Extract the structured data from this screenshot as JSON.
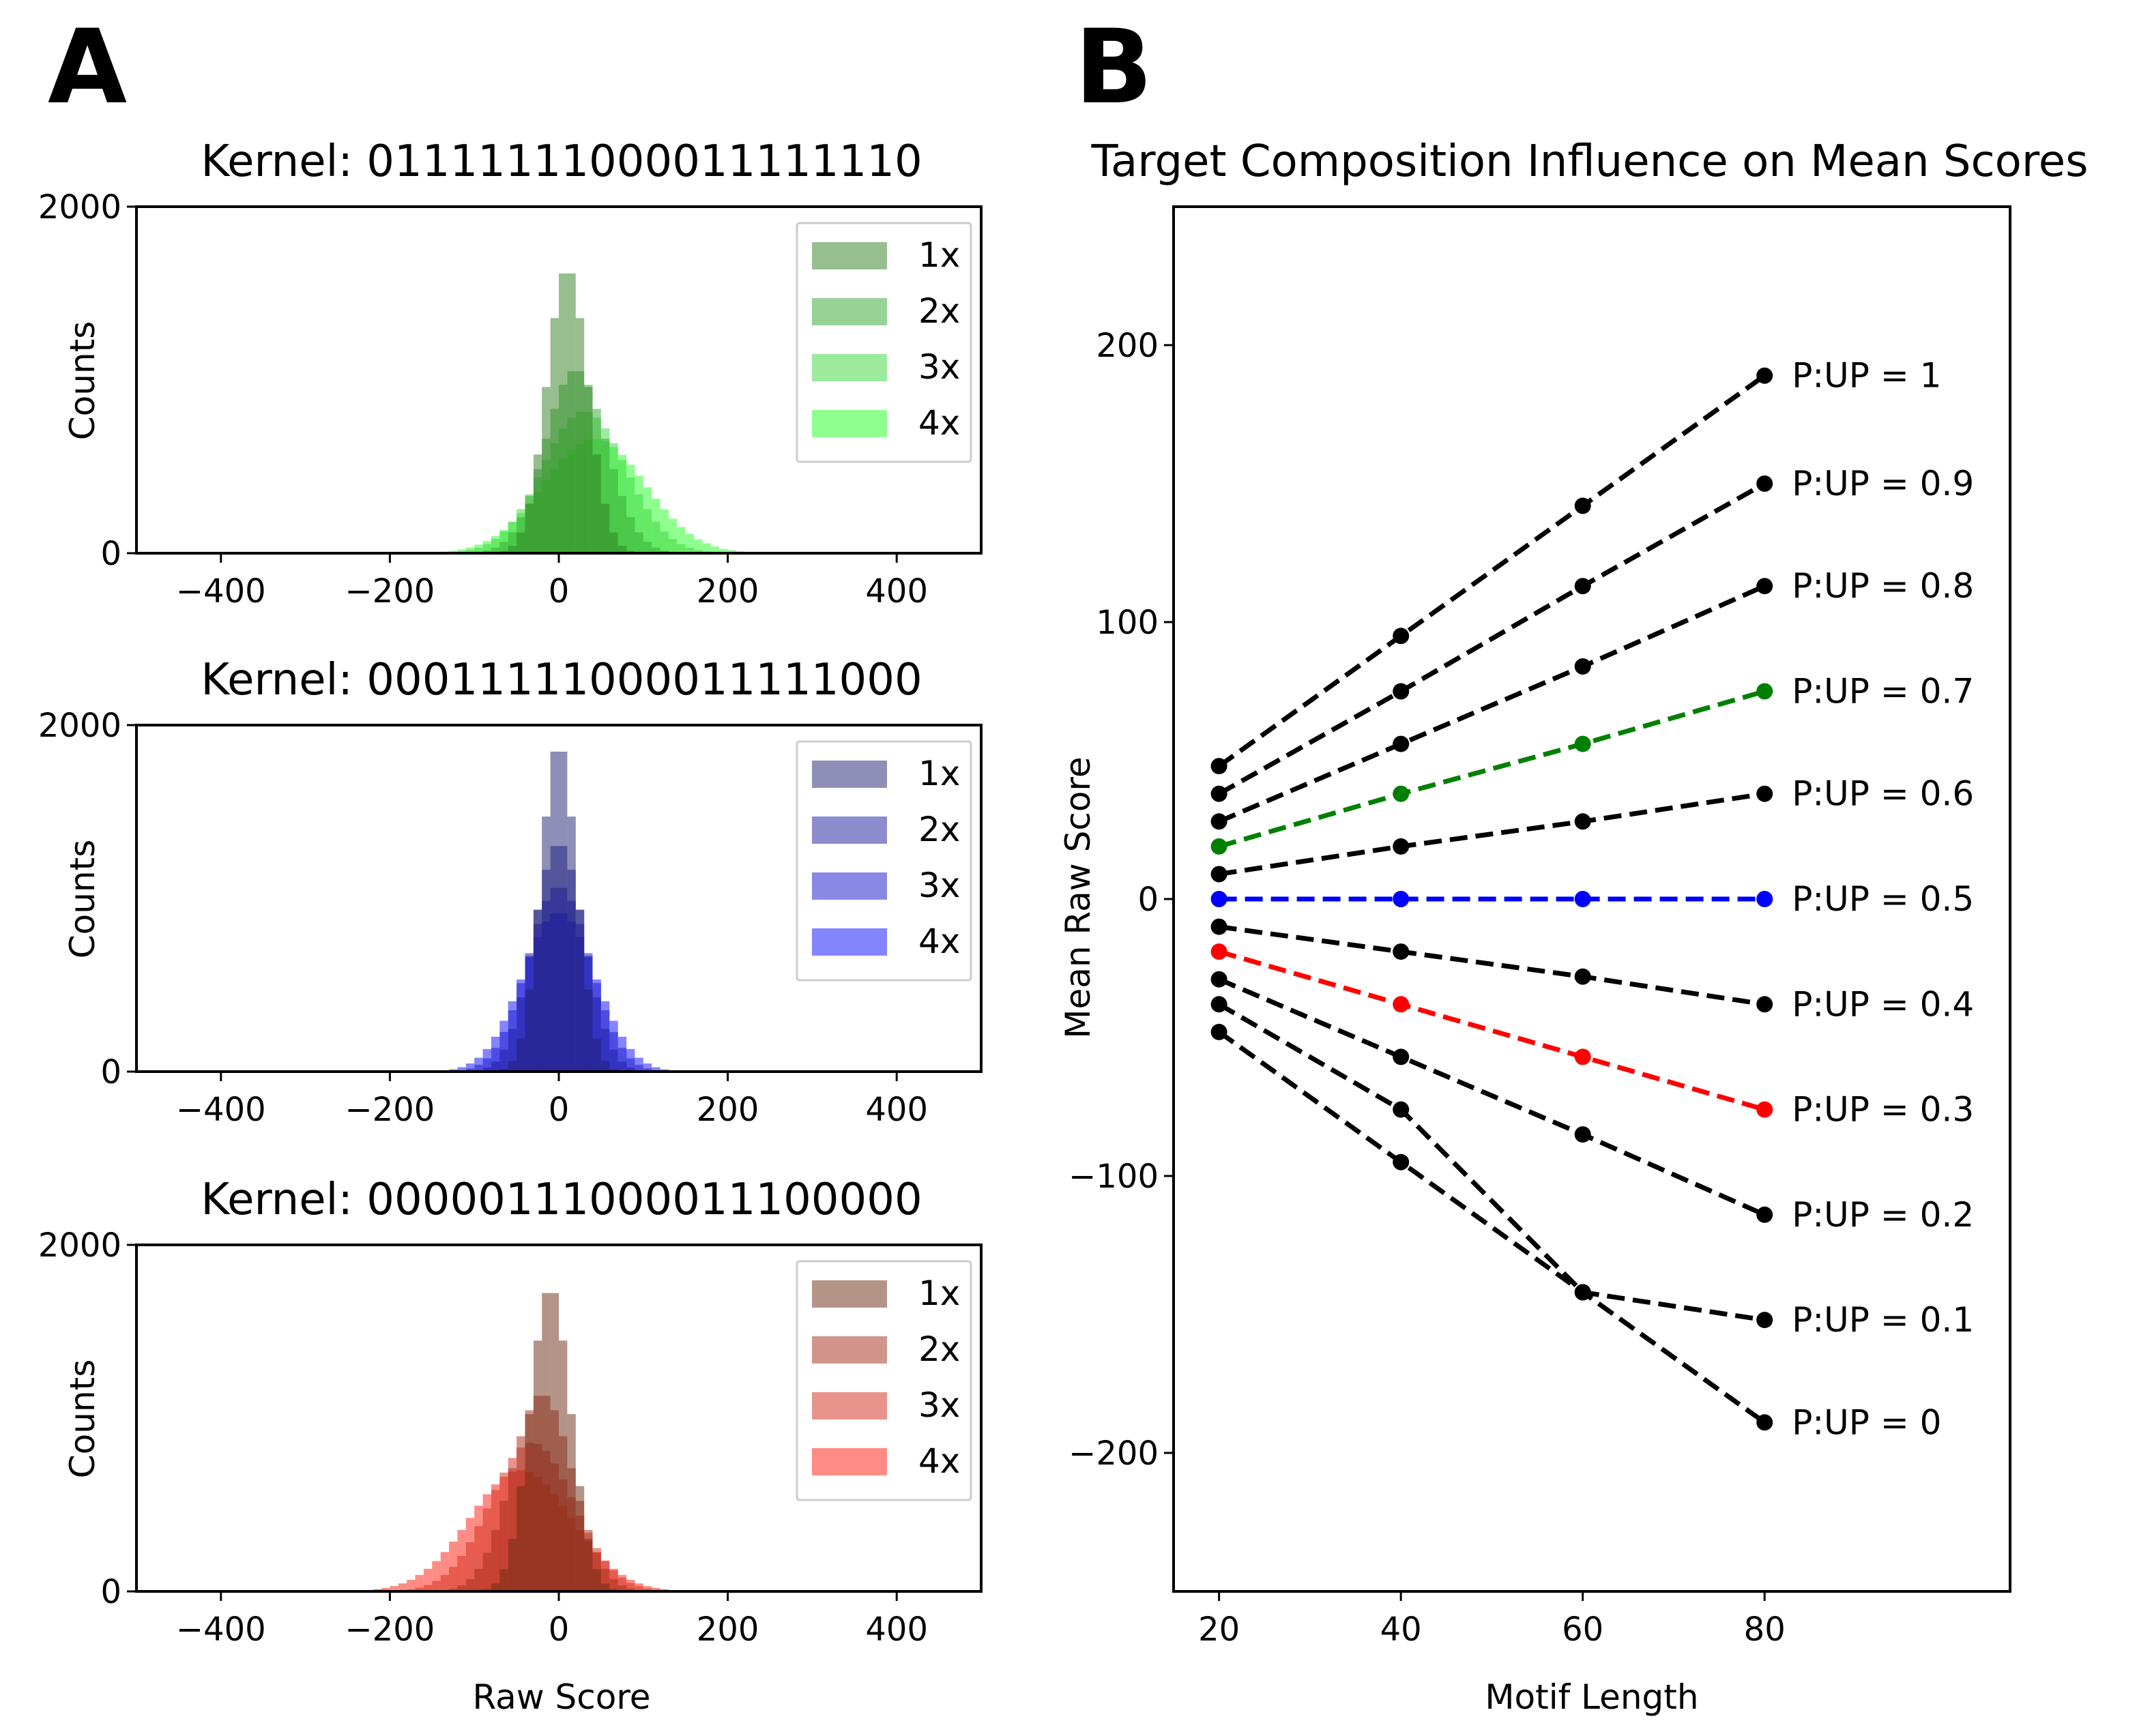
{
  "panel_labels": [
    "A",
    "B"
  ],
  "chart_data": [
    {
      "type": "histogram",
      "panel": "A",
      "title": "Kernel: 01111111000011111110",
      "xlabel": "",
      "ylabel": "Counts",
      "xlim": [
        -500,
        500
      ],
      "ylim": [
        0,
        2000
      ],
      "xticks": [
        -400,
        -200,
        0,
        200,
        400
      ],
      "xtick_labels": [
        "−400",
        "−200",
        "0",
        "200",
        "400"
      ],
      "yticks": [
        0,
        2000
      ],
      "ytick_labels": [
        "0",
        "2000"
      ],
      "legend_position": "top-right",
      "bin_width": 10,
      "series": [
        {
          "name": "1x",
          "color": "#2f7d1f",
          "mean": 10,
          "sd": 24,
          "peak": 1650
        },
        {
          "name": "2x",
          "color": "#2fa82f",
          "mean": 20,
          "sd": 36,
          "peak": 1060
        },
        {
          "name": "3x",
          "color": "#3ad63a",
          "mean": 30,
          "sd": 49,
          "peak": 820
        },
        {
          "name": "4x",
          "color": "#22ff22",
          "mean": 42,
          "sd": 60,
          "peak": 660
        }
      ]
    },
    {
      "type": "histogram",
      "panel": "A",
      "title": "Kernel: 00011111000011111000",
      "xlabel": "",
      "ylabel": "Counts",
      "xlim": [
        -500,
        500
      ],
      "ylim": [
        0,
        2000
      ],
      "xticks": [
        -400,
        -200,
        0,
        200,
        400
      ],
      "xtick_labels": [
        "−400",
        "−200",
        "0",
        "200",
        "400"
      ],
      "yticks": [
        0,
        2000
      ],
      "ytick_labels": [
        "0",
        "2000"
      ],
      "legend_position": "top-right",
      "bin_width": 10,
      "series": [
        {
          "name": "1x",
          "color": "#1e1e6e",
          "mean": 0,
          "sd": 21,
          "peak": 1900
        },
        {
          "name": "2x",
          "color": "#1a1aa0",
          "mean": 0,
          "sd": 30,
          "peak": 1320
        },
        {
          "name": "3x",
          "color": "#1414cc",
          "mean": 0,
          "sd": 37,
          "peak": 1070
        },
        {
          "name": "4x",
          "color": "#0a0aff",
          "mean": 0,
          "sd": 43,
          "peak": 920
        }
      ]
    },
    {
      "type": "histogram",
      "panel": "A",
      "title": "Kernel: 00000111000011100000",
      "xlabel": "Raw Score",
      "ylabel": "Counts",
      "xlim": [
        -500,
        500
      ],
      "ylim": [
        0,
        2000
      ],
      "xticks": [
        -400,
        -200,
        0,
        200,
        400
      ],
      "xtick_labels": [
        "−400",
        "−200",
        "0",
        "200",
        "400"
      ],
      "yticks": [
        0,
        2000
      ],
      "ytick_labels": [
        "0",
        "2000"
      ],
      "legend_position": "top-right",
      "bin_width": 10,
      "series": [
        {
          "name": "1x",
          "color": "#6b2a12",
          "mean": -10,
          "sd": 24,
          "peak": 1760
        },
        {
          "name": "2x",
          "color": "#a32a18",
          "mean": -20,
          "sd": 36,
          "peak": 1140
        },
        {
          "name": "3x",
          "color": "#d22a1a",
          "mean": -32,
          "sd": 49,
          "peak": 860
        },
        {
          "name": "4x",
          "color": "#ff1a0a",
          "mean": -45,
          "sd": 60,
          "peak": 700
        }
      ]
    },
    {
      "type": "line",
      "panel": "B",
      "title": "Target Composition Influence on Mean Scores",
      "xlabel": "Motif Length",
      "ylabel": "Mean Raw Score",
      "xlim": [
        15,
        107
      ],
      "ylim": [
        -250,
        250
      ],
      "xticks": [
        20,
        40,
        60,
        80
      ],
      "xtick_labels": [
        "20",
        "40",
        "60",
        "80"
      ],
      "yticks": [
        -200,
        -100,
        0,
        100,
        200
      ],
      "ytick_labels": [
        "−200",
        "−100",
        "0",
        "100",
        "200"
      ],
      "x": [
        20,
        40,
        60,
        80
      ],
      "series": [
        {
          "name": "P:UP = 1",
          "color": "#000000",
          "values": [
            48,
            95,
            142,
            189
          ]
        },
        {
          "name": "P:UP = 0.9",
          "color": "#000000",
          "values": [
            38,
            75,
            113,
            150
          ]
        },
        {
          "name": "P:UP = 0.8",
          "color": "#000000",
          "values": [
            28,
            56,
            84,
            113
          ]
        },
        {
          "name": "P:UP = 0.7",
          "color": "#008000",
          "values": [
            19,
            38,
            56,
            75
          ]
        },
        {
          "name": "P:UP = 0.6",
          "color": "#000000",
          "values": [
            9,
            19,
            28,
            38
          ]
        },
        {
          "name": "P:UP = 0.5",
          "color": "#0000ff",
          "values": [
            0,
            0,
            0,
            0
          ]
        },
        {
          "name": "P:UP = 0.4",
          "color": "#000000",
          "values": [
            -10,
            -19,
            -28,
            -38
          ]
        },
        {
          "name": "P:UP = 0.3",
          "color": "#ff0000",
          "values": [
            -19,
            -38,
            -57,
            -76
          ]
        },
        {
          "name": "P:UP = 0.2",
          "color": "#000000",
          "values": [
            -29,
            -57,
            -85,
            -114
          ]
        },
        {
          "name": "P:UP = 0.1",
          "color": "#000000",
          "values": [
            -38,
            -76,
            -142,
            -152
          ]
        },
        {
          "name": "P:UP = 0",
          "color": "#000000",
          "values": [
            -48,
            -95,
            -142,
            -189
          ]
        }
      ]
    }
  ]
}
